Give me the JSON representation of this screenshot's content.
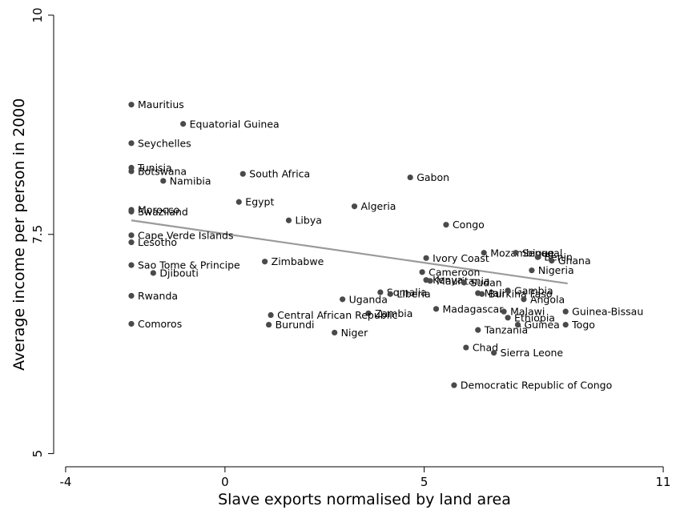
{
  "chart_data": {
    "type": "scatter",
    "xlabel": "Slave exports normalised by land area",
    "ylabel": "Average income per person in 2000",
    "xlim": [
      -4.3,
      11.2
    ],
    "ylim": [
      4.85,
      10.1
    ],
    "xticks": [
      {
        "value": -4,
        "label": "-4"
      },
      {
        "value": 0,
        "label": "0"
      },
      {
        "value": 5,
        "label": "5"
      },
      {
        "value": 11,
        "label": "11"
      }
    ],
    "yticks": [
      {
        "value": 5,
        "label": "5"
      },
      {
        "value": 7.5,
        "label": "7.5"
      },
      {
        "value": 10,
        "label": "10"
      }
    ],
    "grid": false,
    "legend": "none",
    "point_color": "#4a4a4a",
    "fit_line": {
      "color": "#9a9a9a",
      "x": [
        -2.35,
        8.6
      ],
      "y": [
        7.66,
        6.94
      ]
    },
    "points": [
      {
        "label": "Mauritius",
        "x": -2.35,
        "y": 8.98
      },
      {
        "label": "Equatorial Guinea",
        "x": -1.05,
        "y": 8.76
      },
      {
        "label": "Seychelles",
        "x": -2.35,
        "y": 8.54
      },
      {
        "label": "Tunisia",
        "x": -2.35,
        "y": 8.26
      },
      {
        "label": "Botswana",
        "x": -2.35,
        "y": 8.22
      },
      {
        "label": "Namibia",
        "x": -1.55,
        "y": 8.11
      },
      {
        "label": "South Africa",
        "x": 0.45,
        "y": 8.19
      },
      {
        "label": "Gabon",
        "x": 4.65,
        "y": 8.15
      },
      {
        "label": "Egypt",
        "x": 0.35,
        "y": 7.87
      },
      {
        "label": "Algeria",
        "x": 3.25,
        "y": 7.82
      },
      {
        "label": "Morocco",
        "x": -2.35,
        "y": 7.78
      },
      {
        "label": "Swaziland",
        "x": -2.35,
        "y": 7.76
      },
      {
        "label": "Libya",
        "x": 1.6,
        "y": 7.66
      },
      {
        "label": "Congo",
        "x": 5.55,
        "y": 7.61
      },
      {
        "label": "Cape Verde Islands",
        "x": -2.35,
        "y": 7.49
      },
      {
        "label": "Lesotho",
        "x": -2.35,
        "y": 7.41
      },
      {
        "label": "Mozambique",
        "x": 6.5,
        "y": 7.29
      },
      {
        "label": "Senegal",
        "x": 7.3,
        "y": 7.29
      },
      {
        "label": "Benin",
        "x": 7.85,
        "y": 7.24
      },
      {
        "label": "Ghana",
        "x": 8.2,
        "y": 7.2
      },
      {
        "label": "Ivory Coast",
        "x": 5.05,
        "y": 7.23
      },
      {
        "label": "Zimbabwe",
        "x": 1.0,
        "y": 7.19
      },
      {
        "label": "Sao Tome & Principe",
        "x": -2.35,
        "y": 7.15
      },
      {
        "label": "Nigeria",
        "x": 7.7,
        "y": 7.09
      },
      {
        "label": "Djibouti",
        "x": -1.8,
        "y": 7.06
      },
      {
        "label": "Cameroon",
        "x": 4.95,
        "y": 7.07
      },
      {
        "label": "Kenya",
        "x": 5.05,
        "y": 6.98
      },
      {
        "label": "Mauritania",
        "x": 5.15,
        "y": 6.97
      },
      {
        "label": "Sudan",
        "x": 6.0,
        "y": 6.95
      },
      {
        "label": "Somalia",
        "x": 3.9,
        "y": 6.84
      },
      {
        "label": "Liberia",
        "x": 4.15,
        "y": 6.82
      },
      {
        "label": "Mali",
        "x": 6.35,
        "y": 6.83
      },
      {
        "label": "Burkina Faso",
        "x": 6.45,
        "y": 6.82
      },
      {
        "label": "Gambia",
        "x": 7.1,
        "y": 6.86
      },
      {
        "label": "Rwanda",
        "x": -2.35,
        "y": 6.8
      },
      {
        "label": "Uganda",
        "x": 2.95,
        "y": 6.76
      },
      {
        "label": "Angola",
        "x": 7.5,
        "y": 6.76
      },
      {
        "label": "Madagascar",
        "x": 5.3,
        "y": 6.65
      },
      {
        "label": "Malawi",
        "x": 7.0,
        "y": 6.62
      },
      {
        "label": "Guinea-Bissau",
        "x": 8.55,
        "y": 6.62
      },
      {
        "label": "Zambia",
        "x": 3.6,
        "y": 6.6
      },
      {
        "label": "Central African Republic",
        "x": 1.15,
        "y": 6.58
      },
      {
        "label": "Ethiopia",
        "x": 7.1,
        "y": 6.55
      },
      {
        "label": "Comoros",
        "x": -2.35,
        "y": 6.48
      },
      {
        "label": "Burundi",
        "x": 1.1,
        "y": 6.47
      },
      {
        "label": "Guinea",
        "x": 7.35,
        "y": 6.47
      },
      {
        "label": "Togo",
        "x": 8.55,
        "y": 6.47
      },
      {
        "label": "Tanzania",
        "x": 6.35,
        "y": 6.41
      },
      {
        "label": "Niger",
        "x": 2.75,
        "y": 6.38
      },
      {
        "label": "Chad",
        "x": 6.05,
        "y": 6.21
      },
      {
        "label": "Sierra Leone",
        "x": 6.75,
        "y": 6.15
      },
      {
        "label": "Democratic Republic of Congo",
        "x": 5.75,
        "y": 5.78
      }
    ]
  }
}
